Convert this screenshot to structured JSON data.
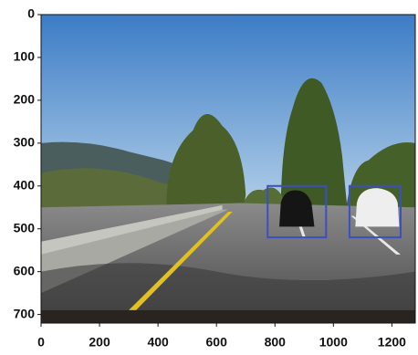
{
  "chart_data": {
    "type": "image",
    "xlim": [
      0,
      1280
    ],
    "ylim": [
      720,
      0
    ],
    "xticks": [
      0,
      200,
      400,
      600,
      800,
      1000,
      1200
    ],
    "yticks": [
      0,
      100,
      200,
      300,
      400,
      500,
      600,
      700
    ],
    "boxes": [
      {
        "x": [
          775,
          975
        ],
        "y": [
          400,
          520
        ]
      },
      {
        "x": [
          1055,
          1230
        ],
        "y": [
          400,
          520
        ]
      }
    ],
    "box_color": "#3b4fc4"
  }
}
